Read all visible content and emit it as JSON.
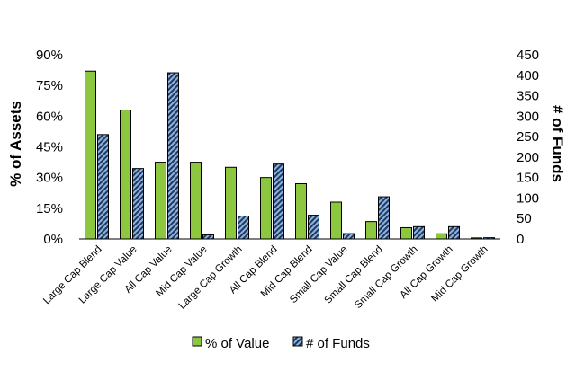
{
  "chart_data": {
    "type": "bar",
    "categories": [
      "Large Cap Blend",
      "Large Cap Value",
      "All Cap Value",
      "Mid Cap Value",
      "Large Cap Growth",
      "All Cap Blend",
      "Mid Cap Blend",
      "Small Cap Value",
      "Small Cap Blend",
      "Small Cap Growth",
      "All Cap Growth",
      "Mid Cap Growth"
    ],
    "series": [
      {
        "name": "% of Value",
        "axis": "left",
        "color": "#8dc63f",
        "pattern": "solid",
        "values": [
          82,
          63,
          37.5,
          37.5,
          35,
          30,
          27,
          18,
          8.5,
          5.5,
          2.5,
          0.5
        ]
      },
      {
        "name": "# of Funds",
        "axis": "right",
        "color": "#1f3864",
        "pattern": "blue-hatch",
        "values": [
          255,
          172,
          406,
          10,
          56,
          183,
          58,
          13,
          103,
          30,
          30,
          3
        ]
      }
    ],
    "y_left": {
      "label": "% of Assets",
      "min": 0,
      "max": 90,
      "ticks": [
        "0%",
        "15%",
        "30%",
        "45%",
        "60%",
        "75%",
        "90%"
      ]
    },
    "y_right": {
      "label": "# of Funds",
      "min": 0,
      "max": 450,
      "ticks": [
        "0",
        "50",
        "100",
        "150",
        "200",
        "250",
        "300",
        "350",
        "400",
        "450"
      ]
    },
    "grid": false,
    "legend_position": "bottom"
  }
}
